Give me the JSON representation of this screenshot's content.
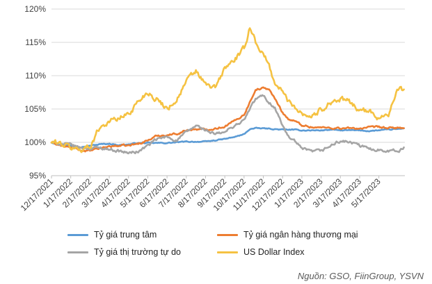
{
  "chart_data": {
    "type": "line",
    "title": "",
    "xlabel": "",
    "ylabel": "",
    "ylim": [
      95,
      120
    ],
    "y_ticks": [
      "95%",
      "100%",
      "105%",
      "110%",
      "115%",
      "120%"
    ],
    "y_tick_values": [
      95,
      100,
      105,
      110,
      115,
      120
    ],
    "grid": "horizontal",
    "x_tick_labels": [
      "12/17/2021",
      "1/17/2022",
      "2/17/2022",
      "3/17/2022",
      "4/17/2022",
      "5/17/2022",
      "6/17/2022",
      "7/17/2022",
      "8/17/2022",
      "9/17/2022",
      "10/17/2022",
      "11/17/2022",
      "12/17/2022",
      "1/17/2023",
      "2/17/2023",
      "3/17/2023",
      "4/17/2023",
      "5/17/2023"
    ],
    "x_range_months": [
      0,
      18.35
    ],
    "legend_position": "bottom",
    "series": [
      {
        "name": "Tỷ giá trung tâm",
        "color": "#5b9bd5",
        "points": [
          [
            0,
            100.0
          ],
          [
            0.5,
            99.6
          ],
          [
            1,
            99.5
          ],
          [
            1.5,
            99.3
          ],
          [
            2,
            99.5
          ],
          [
            2.5,
            99.7
          ],
          [
            3,
            99.8
          ],
          [
            3.5,
            99.6
          ],
          [
            4,
            99.7
          ],
          [
            4.5,
            99.9
          ],
          [
            5,
            99.9
          ],
          [
            5.5,
            99.9
          ],
          [
            6,
            99.9
          ],
          [
            6.5,
            100.0
          ],
          [
            7,
            100.1
          ],
          [
            7.5,
            100.1
          ],
          [
            8,
            100.1
          ],
          [
            8.5,
            100.3
          ],
          [
            9,
            100.5
          ],
          [
            9.5,
            100.8
          ],
          [
            10,
            101.2
          ],
          [
            10.3,
            102.0
          ],
          [
            10.6,
            102.1
          ],
          [
            11,
            102.1
          ],
          [
            11.5,
            102.0
          ],
          [
            12,
            101.9
          ],
          [
            12.5,
            101.9
          ],
          [
            13,
            101.8
          ],
          [
            13.5,
            101.8
          ],
          [
            14,
            101.8
          ],
          [
            14.5,
            101.9
          ],
          [
            15,
            101.8
          ],
          [
            15.5,
            101.8
          ],
          [
            16,
            101.8
          ],
          [
            16.5,
            101.7
          ],
          [
            17,
            101.8
          ],
          [
            17.5,
            101.9
          ],
          [
            18,
            102.0
          ],
          [
            18.3,
            102.1
          ]
        ]
      },
      {
        "name": "Tỷ giá ngân hàng thương mại",
        "color": "#ed7d31",
        "points": [
          [
            0,
            100.0
          ],
          [
            0.5,
            99.5
          ],
          [
            1,
            99.2
          ],
          [
            1.5,
            98.8
          ],
          [
            2,
            98.7
          ],
          [
            2.5,
            99.1
          ],
          [
            3,
            99.4
          ],
          [
            3.5,
            99.5
          ],
          [
            4,
            99.5
          ],
          [
            4.5,
            99.8
          ],
          [
            5,
            100.3
          ],
          [
            5.5,
            101.0
          ],
          [
            6,
            101.1
          ],
          [
            6.5,
            101.3
          ],
          [
            7,
            101.8
          ],
          [
            7.5,
            102.0
          ],
          [
            8,
            101.9
          ],
          [
            8.5,
            102.1
          ],
          [
            9,
            102.4
          ],
          [
            9.5,
            103.2
          ],
          [
            10,
            104.2
          ],
          [
            10.3,
            106.0
          ],
          [
            10.6,
            108.0
          ],
          [
            11,
            108.1
          ],
          [
            11.3,
            108.0
          ],
          [
            11.6,
            106.5
          ],
          [
            12,
            104.5
          ],
          [
            12.3,
            103.5
          ],
          [
            12.6,
            103.2
          ],
          [
            13,
            102.6
          ],
          [
            13.5,
            102.3
          ],
          [
            14,
            102.2
          ],
          [
            14.5,
            102.2
          ],
          [
            15,
            102.1
          ],
          [
            15.5,
            102.1
          ],
          [
            16,
            102.1
          ],
          [
            16.5,
            102.2
          ],
          [
            17,
            102.3
          ],
          [
            17.5,
            102.1
          ],
          [
            18,
            102.2
          ],
          [
            18.3,
            102.2
          ]
        ]
      },
      {
        "name": "Tỷ giá thị trường tự do",
        "color": "#a5a5a5",
        "points": [
          [
            0,
            100.0
          ],
          [
            0.5,
            99.8
          ],
          [
            1,
            99.6
          ],
          [
            1.5,
            99.2
          ],
          [
            2,
            99.1
          ],
          [
            2.5,
            99.2
          ],
          [
            3,
            99.0
          ],
          [
            3.5,
            98.7
          ],
          [
            4,
            98.4
          ],
          [
            4.5,
            98.6
          ],
          [
            5,
            99.5
          ],
          [
            5.5,
            100.5
          ],
          [
            6,
            100.8
          ],
          [
            6.5,
            100.3
          ],
          [
            7,
            101.5
          ],
          [
            7.5,
            102.5
          ],
          [
            8,
            101.8
          ],
          [
            8.5,
            101.2
          ],
          [
            9,
            101.5
          ],
          [
            9.5,
            102.5
          ],
          [
            10,
            103.3
          ],
          [
            10.3,
            105.0
          ],
          [
            10.6,
            106.5
          ],
          [
            11,
            107.0
          ],
          [
            11.3,
            106.0
          ],
          [
            11.6,
            105.2
          ],
          [
            12,
            102.5
          ],
          [
            12.3,
            100.8
          ],
          [
            12.6,
            100.2
          ],
          [
            13,
            99.0
          ],
          [
            13.5,
            98.6
          ],
          [
            14,
            98.7
          ],
          [
            14.5,
            99.5
          ],
          [
            15,
            100.2
          ],
          [
            15.5,
            100.0
          ],
          [
            16,
            99.5
          ],
          [
            16.5,
            99.0
          ],
          [
            17,
            98.9
          ],
          [
            17.5,
            98.8
          ],
          [
            18,
            98.7
          ],
          [
            18.3,
            99.1
          ]
        ]
      },
      {
        "name": "US Dollar Index",
        "color": "#f5c242",
        "points": [
          [
            0,
            100.0
          ],
          [
            0.5,
            99.8
          ],
          [
            1,
            99.2
          ],
          [
            1.5,
            98.9
          ],
          [
            2,
            99.4
          ],
          [
            2.5,
            102.3
          ],
          [
            3,
            103.2
          ],
          [
            3.5,
            103.6
          ],
          [
            4,
            104.3
          ],
          [
            4.5,
            106.1
          ],
          [
            5,
            107.6
          ],
          [
            5.5,
            106.4
          ],
          [
            6,
            105.1
          ],
          [
            6.5,
            106.4
          ],
          [
            7,
            109.1
          ],
          [
            7.5,
            110.7
          ],
          [
            8,
            108.6
          ],
          [
            8.5,
            108.1
          ],
          [
            9,
            111.1
          ],
          [
            9.5,
            112.4
          ],
          [
            10,
            113.9
          ],
          [
            10.3,
            117.4
          ],
          [
            10.6,
            115.1
          ],
          [
            11,
            113.2
          ],
          [
            11.3,
            111.4
          ],
          [
            11.6,
            108.9
          ],
          [
            12,
            107.6
          ],
          [
            12.3,
            106.1
          ],
          [
            12.6,
            105.6
          ],
          [
            13,
            104.4
          ],
          [
            13.5,
            103.9
          ],
          [
            14,
            104.9
          ],
          [
            14.5,
            106.1
          ],
          [
            15,
            106.4
          ],
          [
            15.5,
            106.0
          ],
          [
            16,
            104.9
          ],
          [
            16.5,
            104.5
          ],
          [
            17,
            103.8
          ],
          [
            17.5,
            104.4
          ],
          [
            18,
            107.8
          ],
          [
            18.3,
            107.9
          ]
        ]
      }
    ]
  },
  "source": "Nguồn: GSO, FiinGroup, YSVN"
}
